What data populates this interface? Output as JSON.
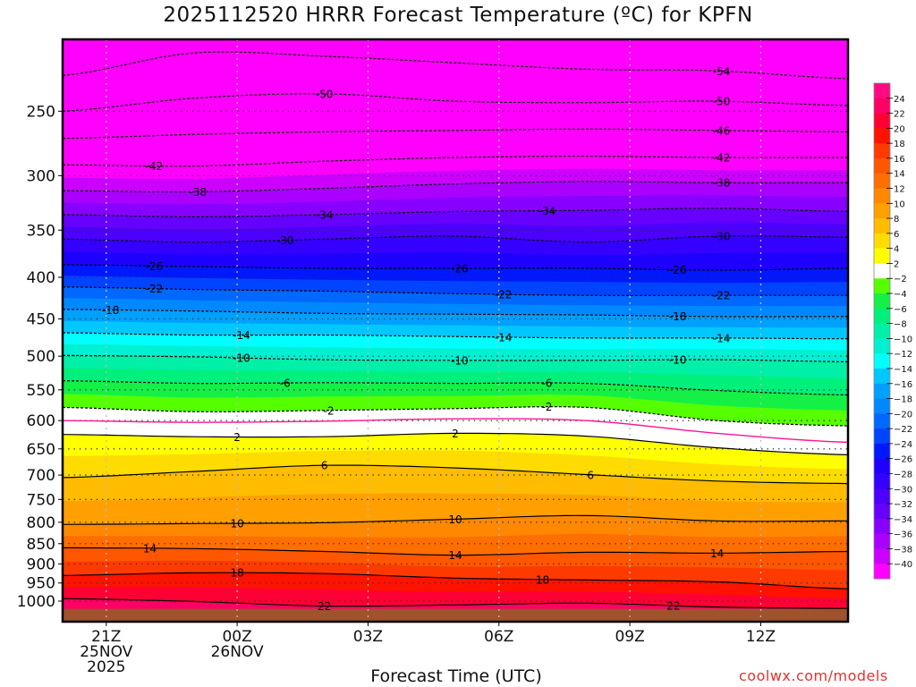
{
  "title": "2025112520 HRRR Forecast Temperature (ºC) for KPFN",
  "credit": "coolwx.com/models",
  "chart_data": {
    "type": "contour",
    "title": "2025112520 HRRR Forecast Temperature (ºC) for KPFN",
    "xlabel": "Forecast Time (UTC)",
    "ylabel": "",
    "xlim_hours": [
      0,
      18
    ],
    "ylim_hpa": [
      1060,
      204
    ],
    "y_scale": "log",
    "grid": true,
    "x_hours": [
      0,
      3,
      6,
      9,
      12,
      15,
      18
    ],
    "xticks": [
      {
        "hour": 1,
        "label": "21Z",
        "sub1": "25NOV",
        "sub2": "2025"
      },
      {
        "hour": 4,
        "label": "00Z",
        "sub1": "26NOV",
        "sub2": ""
      },
      {
        "hour": 7,
        "label": "03Z",
        "sub1": "",
        "sub2": ""
      },
      {
        "hour": 10,
        "label": "06Z",
        "sub1": "",
        "sub2": ""
      },
      {
        "hour": 13,
        "label": "09Z",
        "sub1": "",
        "sub2": ""
      },
      {
        "hour": 16,
        "label": "12Z",
        "sub1": "",
        "sub2": ""
      }
    ],
    "yticks": [
      250,
      300,
      350,
      400,
      450,
      500,
      550,
      600,
      650,
      700,
      750,
      800,
      850,
      900,
      950,
      1000
    ],
    "surface_pressure_hpa": 1022,
    "contours": [
      {
        "level": -54,
        "p": [
          226,
          212,
          214,
          218,
          222,
          223,
          228
        ]
      },
      {
        "level": -50,
        "p": [
          250,
          241,
          238,
          243,
          244,
          243,
          246
        ]
      },
      {
        "level": -46,
        "p": [
          270,
          267,
          265,
          264,
          263,
          264,
          265
        ]
      },
      {
        "level": -42,
        "p": [
          291,
          292,
          288,
          285,
          284,
          285,
          285
        ]
      },
      {
        "level": -38,
        "p": [
          313,
          314,
          311,
          307,
          305,
          306,
          306
        ]
      },
      {
        "level": -34,
        "p": [
          335,
          337,
          335,
          332,
          331,
          329,
          332
        ]
      },
      {
        "level": -30,
        "p": [
          359,
          362,
          359,
          356,
          362,
          356,
          357
        ]
      },
      {
        "level": -26,
        "p": [
          386,
          388,
          390,
          390,
          390,
          392,
          390
        ]
      },
      {
        "level": -22,
        "p": [
          411,
          414,
          416,
          419,
          421,
          421,
          421
        ]
      },
      {
        "level": -18,
        "p": [
          438,
          440,
          443,
          444,
          445,
          447,
          447
        ]
      },
      {
        "level": -14,
        "p": [
          468,
          471,
          471,
          473,
          475,
          475,
          476
        ]
      },
      {
        "level": -10,
        "p": [
          499,
          501,
          505,
          506,
          506,
          505,
          508
        ]
      },
      {
        "level": -6,
        "p": [
          536,
          540,
          539,
          540,
          540,
          551,
          558
        ]
      },
      {
        "level": -2,
        "p": [
          578,
          585,
          583,
          580,
          578,
          600,
          609
        ]
      },
      {
        "level": 0,
        "p": [
          600,
          603,
          601,
          597,
          600,
          622,
          638
        ]
      },
      {
        "level": 2,
        "p": [
          624,
          628,
          628,
          622,
          627,
          648,
          661
        ]
      },
      {
        "level": 6,
        "p": [
          705,
          693,
          681,
          686,
          699,
          712,
          717
        ]
      },
      {
        "level": 10,
        "p": [
          805,
          803,
          801,
          793,
          785,
          797,
          797
        ]
      },
      {
        "level": 14,
        "p": [
          860,
          862,
          869,
          878,
          871,
          873,
          869
        ]
      },
      {
        "level": 18,
        "p": [
          930,
          923,
          925,
          937,
          942,
          947,
          966
        ]
      },
      {
        "level": 22,
        "p": [
          993,
          1001,
          1014,
          1011,
          1006,
          1017,
          1021
        ]
      }
    ],
    "contour_labels": [
      {
        "level": -54,
        "hour": 15.1
      },
      {
        "level": -50,
        "hour": 6.0
      },
      {
        "level": -50,
        "hour": 15.1
      },
      {
        "level": -46,
        "hour": 15.1
      },
      {
        "level": -42,
        "hour": 2.1
      },
      {
        "level": -42,
        "hour": 15.1
      },
      {
        "level": -38,
        "hour": 3.1
      },
      {
        "level": -38,
        "hour": 15.1
      },
      {
        "level": -34,
        "hour": 6.0
      },
      {
        "level": -34,
        "hour": 11.1
      },
      {
        "level": -30,
        "hour": 5.1
      },
      {
        "level": -30,
        "hour": 15.1
      },
      {
        "level": -26,
        "hour": 2.1
      },
      {
        "level": -26,
        "hour": 9.1
      },
      {
        "level": -26,
        "hour": 14.1
      },
      {
        "level": -22,
        "hour": 2.1
      },
      {
        "level": -22,
        "hour": 10.1
      },
      {
        "level": -22,
        "hour": 15.1
      },
      {
        "level": -18,
        "hour": 1.1
      },
      {
        "level": -18,
        "hour": 14.1
      },
      {
        "level": -14,
        "hour": 4.1
      },
      {
        "level": -14,
        "hour": 10.1
      },
      {
        "level": -14,
        "hour": 15.1
      },
      {
        "level": -10,
        "hour": 4.1
      },
      {
        "level": -10,
        "hour": 9.1
      },
      {
        "level": -10,
        "hour": 14.1
      },
      {
        "level": -6,
        "hour": 5.1
      },
      {
        "level": -6,
        "hour": 11.1
      },
      {
        "level": -2,
        "hour": 6.1
      },
      {
        "level": -2,
        "hour": 11.1
      },
      {
        "level": 2,
        "hour": 4.0
      },
      {
        "level": 2,
        "hour": 9.0
      },
      {
        "level": 6,
        "hour": 6.0
      },
      {
        "level": 6,
        "hour": 12.1
      },
      {
        "level": 10,
        "hour": 4.0
      },
      {
        "level": 10,
        "hour": 9.0
      },
      {
        "level": 14,
        "hour": 2.0
      },
      {
        "level": 14,
        "hour": 9.0
      },
      {
        "level": 14,
        "hour": 15.0
      },
      {
        "level": 18,
        "hour": 4.0
      },
      {
        "level": 18,
        "hour": 11.0
      },
      {
        "level": 22,
        "hour": 6.0
      },
      {
        "level": 22,
        "hour": 14.0
      }
    ],
    "colorbar": {
      "ticks": [
        24,
        22,
        20,
        18,
        16,
        14,
        12,
        10,
        8,
        6,
        4,
        2,
        -2,
        -4,
        -6,
        -8,
        -10,
        -12,
        -14,
        -16,
        -18,
        -20,
        -22,
        -24,
        -26,
        -28,
        -30,
        -32,
        -34,
        -36,
        -38,
        -40
      ],
      "band_colors_top_to_bottom": [
        "#ff0a82",
        "#ff0064",
        "#ff0035",
        "#ff1200",
        "#ff3a00",
        "#ff5600",
        "#ff6e00",
        "#ff8800",
        "#ffa000",
        "#ffbc00",
        "#ffdc00",
        "#ffff00",
        "#ffffff",
        "#55ff00",
        "#14f046",
        "#00f07c",
        "#00f0a8",
        "#00f0d2",
        "#00ffff",
        "#00c8ff",
        "#00a0ff",
        "#0088ff",
        "#0068ff",
        "#0044ff",
        "#0018ff",
        "#1e00ff",
        "#3400ff",
        "#4c00ff",
        "#6600ff",
        "#8800ff",
        "#aa00ff",
        "#cc00ff",
        "#ff00ff"
      ],
      "zero_line_color": "#ff1493",
      "ground_color": "#a0522d"
    }
  }
}
